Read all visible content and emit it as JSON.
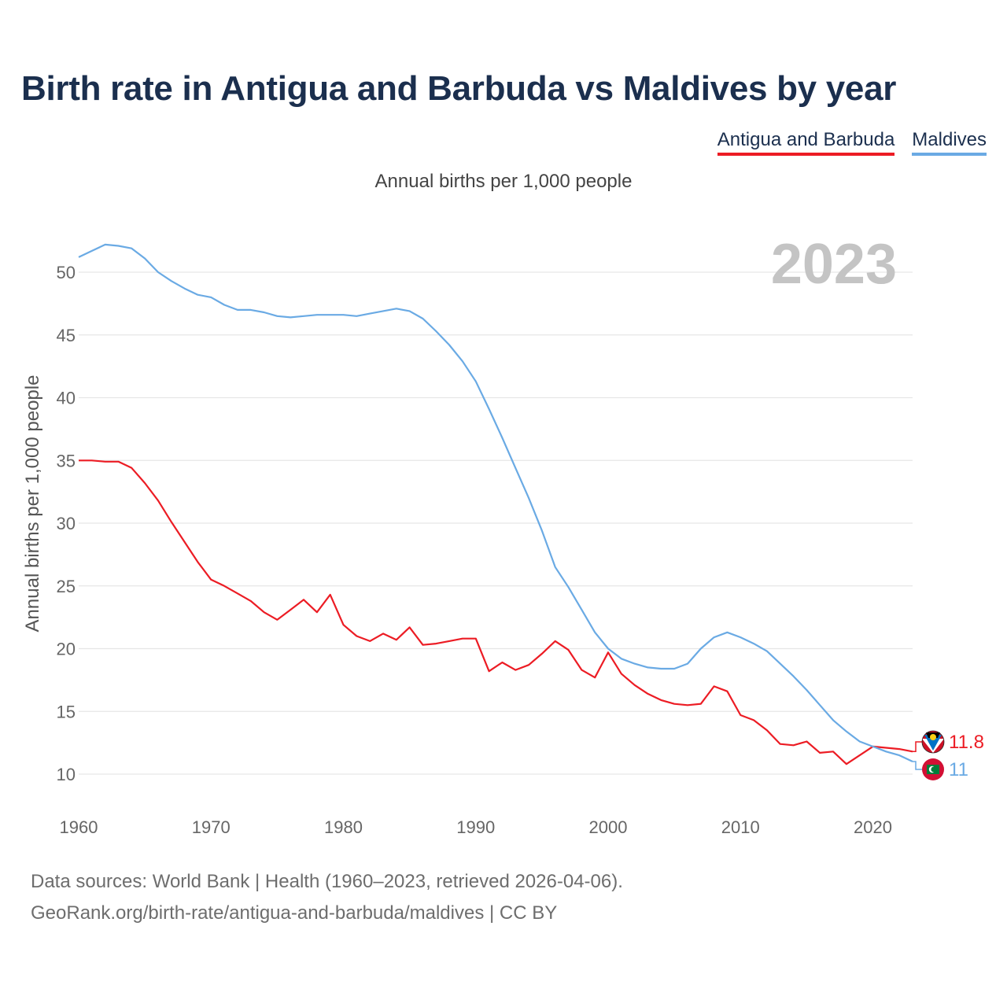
{
  "title": "Birth rate in Antigua and Barbuda vs Maldives by year",
  "legend": {
    "antigua": "Antigua and Barbuda",
    "maldives": "Maldives"
  },
  "subtitle": "Annual births per 1,000 people",
  "year_overlay": "2023",
  "source": {
    "line1": "Data sources: World Bank | Health (1960–2023, retrieved 2026-04-06).",
    "line2": "GeoRank.org/birth-rate/antigua-and-barbuda/maldives | CC BY"
  },
  "colors": {
    "antigua": "#ec1c24",
    "maldives": "#6aaae4"
  },
  "chart_data": {
    "type": "line",
    "title": "Birth rate in Antigua and Barbuda vs Maldives by year",
    "xlabel": "",
    "ylabel": "Annual births per 1,000 people",
    "x_start": 1960,
    "x_end": 2023,
    "xlim": [
      1960,
      2023
    ],
    "ylim": [
      8.5,
      53
    ],
    "x_ticks": [
      1960,
      1970,
      1980,
      1990,
      2000,
      2010,
      2020
    ],
    "y_ticks": [
      10,
      15,
      20,
      25,
      30,
      35,
      40,
      45,
      50
    ],
    "grid": true,
    "legend_position": "top-right",
    "series": [
      {
        "name": "Antigua and Barbuda",
        "color": "#ec1c24",
        "end_label": "11.8",
        "values": [
          35.0,
          35.0,
          34.9,
          34.9,
          34.4,
          33.2,
          31.8,
          30.1,
          28.5,
          26.9,
          25.5,
          25.0,
          24.4,
          23.8,
          22.9,
          22.3,
          23.1,
          23.9,
          22.9,
          24.3,
          21.9,
          21.0,
          20.6,
          21.2,
          20.7,
          21.7,
          20.3,
          20.4,
          20.6,
          20.8,
          20.8,
          18.2,
          18.9,
          18.3,
          18.7,
          19.6,
          20.6,
          19.9,
          18.3,
          17.7,
          19.7,
          18.0,
          17.1,
          16.4,
          15.9,
          15.6,
          15.5,
          15.6,
          17.0,
          16.6,
          14.7,
          14.3,
          13.5,
          12.4,
          12.3,
          12.6,
          11.7,
          11.8,
          10.8,
          11.5,
          12.2,
          12.1,
          12.0,
          11.8
        ]
      },
      {
        "name": "Maldives",
        "color": "#6aaae4",
        "end_label": "11",
        "values": [
          51.2,
          51.7,
          52.2,
          52.1,
          51.9,
          51.1,
          50.0,
          49.3,
          48.7,
          48.2,
          48.0,
          47.4,
          47.0,
          47.0,
          46.8,
          46.5,
          46.4,
          46.5,
          46.6,
          46.6,
          46.6,
          46.5,
          46.7,
          46.9,
          47.1,
          46.9,
          46.3,
          45.3,
          44.2,
          42.9,
          41.3,
          39.1,
          36.8,
          34.4,
          32.0,
          29.4,
          26.5,
          24.9,
          23.1,
          21.3,
          20.0,
          19.2,
          18.8,
          18.5,
          18.4,
          18.4,
          18.8,
          20.0,
          20.9,
          21.3,
          20.9,
          20.4,
          19.8,
          18.8,
          17.8,
          16.7,
          15.5,
          14.3,
          13.4,
          12.6,
          12.2,
          11.8,
          11.5,
          11.0
        ]
      }
    ]
  }
}
